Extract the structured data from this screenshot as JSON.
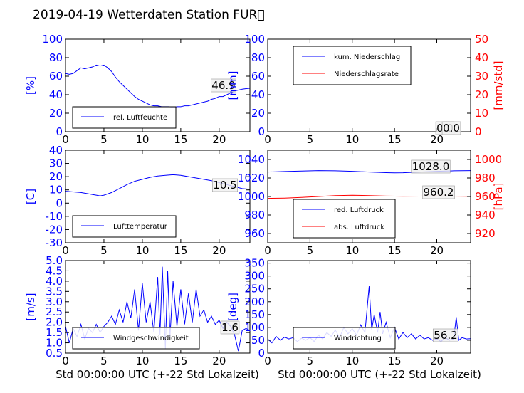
{
  "title": "2019-04-19 Wetterdaten Station FUR\u0000",
  "xlabel": "Std 00:00:00 UTC (+-22 Std Lokalzeit)",
  "colors": {
    "primary": "#0000ff",
    "secondary": "#ff0000",
    "frame": "#000000"
  },
  "chart_data": [
    {
      "id": "humidity",
      "type": "line",
      "ylabel": "[%]",
      "xlim": [
        0,
        24
      ],
      "ylim": [
        0,
        100
      ],
      "xticks": [
        0,
        5,
        10,
        15,
        20
      ],
      "yticks": [
        0,
        20,
        40,
        60,
        80,
        100
      ],
      "legend_position": "lower-left",
      "annotation": "46.9",
      "series": [
        {
          "name": "rel. Luftfeuchte",
          "color": "#0000ff",
          "x": [
            0,
            0.5,
            1,
            1.5,
            2,
            2.5,
            3,
            3.5,
            4,
            4.5,
            5,
            5.5,
            6,
            6.5,
            7,
            7.5,
            8,
            8.5,
            9,
            9.5,
            10,
            10.5,
            11,
            11.5,
            12,
            12.5,
            13,
            13.5,
            14,
            14.5,
            15,
            15.5,
            16,
            16.5,
            17,
            17.5,
            18,
            18.5,
            19,
            19.5,
            20,
            20.5,
            21,
            21.5,
            22,
            22.5,
            23,
            23.5,
            24
          ],
          "y": [
            63,
            62,
            63,
            66,
            69,
            68,
            69,
            70,
            72,
            71,
            72,
            69,
            65,
            59,
            54,
            50,
            46,
            42,
            38,
            35,
            33,
            31,
            29,
            28,
            28,
            27,
            27,
            27,
            26,
            27,
            27,
            28,
            28,
            29,
            30,
            31,
            32,
            33,
            35,
            36,
            38,
            38,
            40,
            42,
            44,
            45,
            46,
            46.5,
            46.9
          ]
        }
      ]
    },
    {
      "id": "precipitation",
      "type": "line",
      "ylabel": "[mm]",
      "ylabel_right": "[mm/std]",
      "xlim": [
        0,
        24
      ],
      "ylim": [
        0,
        100
      ],
      "ylim_right": [
        0,
        50
      ],
      "xticks": [
        0,
        5,
        10,
        15,
        20
      ],
      "yticks": [
        0,
        20,
        40,
        60,
        80,
        100
      ],
      "yticks_right": [
        0,
        10,
        20,
        30,
        40,
        50
      ],
      "legend_position": "upper-left",
      "annotation": "0.0",
      "annotation2": "0.0",
      "series": [
        {
          "name": "kum. Niederschlag",
          "color": "#0000ff",
          "x": [
            0,
            24
          ],
          "y": [
            0,
            0
          ]
        },
        {
          "name": "Niederschlagsrate",
          "color": "#ff0000",
          "axis": "right",
          "x": [
            0,
            24
          ],
          "y": [
            0,
            0
          ]
        }
      ]
    },
    {
      "id": "temperature",
      "type": "line",
      "ylabel": "[C]",
      "xlim": [
        0,
        24
      ],
      "ylim": [
        -30,
        40
      ],
      "xticks": [
        0,
        5,
        10,
        15,
        20
      ],
      "yticks": [
        -30,
        -20,
        -10,
        0,
        10,
        20,
        30,
        40
      ],
      "legend_position": "lower-left",
      "annotation": "10.5",
      "series": [
        {
          "name": "Lufttemperatur",
          "color": "#0000ff",
          "x": [
            0,
            1,
            2,
            3,
            4,
            4.5,
            5,
            6,
            7,
            8,
            9,
            10,
            11,
            12,
            13,
            14,
            15,
            16,
            17,
            18,
            19,
            20,
            21,
            22,
            23,
            24
          ],
          "y": [
            9,
            8.5,
            8,
            7,
            6,
            5.5,
            6,
            8,
            11,
            14,
            16.5,
            18,
            19.5,
            20.5,
            21,
            21.5,
            21,
            20,
            19,
            18,
            17,
            15.5,
            14,
            12.5,
            11,
            10.5
          ]
        }
      ]
    },
    {
      "id": "pressure",
      "type": "line",
      "ylabel_right": "[hPa]",
      "xlim": [
        0,
        24
      ],
      "ylim": [
        950,
        1050
      ],
      "ylim_right": [
        910,
        1010
      ],
      "xticks": [
        0,
        5,
        10,
        15,
        20
      ],
      "yticks": [
        960,
        980,
        1000,
        1020,
        1040
      ],
      "yticks_right": [
        920,
        940,
        960,
        980,
        1000
      ],
      "legend_position": "lower-left",
      "annotation": "1028.0",
      "annotation2": "960.2",
      "series": [
        {
          "name": "red. Luftdruck",
          "color": "#0000ff",
          "x": [
            0,
            2,
            4,
            6,
            8,
            10,
            12,
            14,
            15,
            16,
            18,
            20,
            22,
            24
          ],
          "y": [
            1026.5,
            1027,
            1027.5,
            1028,
            1027.8,
            1027.2,
            1026.5,
            1025.8,
            1025.5,
            1025.7,
            1026.5,
            1027.2,
            1027.8,
            1028
          ]
        },
        {
          "name": "abs. Luftdruck",
          "color": "#ff0000",
          "axis": "right",
          "x": [
            0,
            2,
            4,
            6,
            8,
            10,
            12,
            14,
            16,
            18,
            20,
            22,
            24
          ],
          "y": [
            958,
            958.3,
            959,
            960,
            961,
            961.3,
            961,
            960.5,
            960.3,
            960.4,
            960.6,
            960.4,
            960.2
          ]
        }
      ]
    },
    {
      "id": "windspeed",
      "type": "line",
      "ylabel": "[m/s]",
      "xlim": [
        0,
        24
      ],
      "ylim": [
        0.5,
        5.0
      ],
      "xticks": [
        0,
        5,
        10,
        15,
        20
      ],
      "yticks": [
        0.5,
        1.0,
        1.5,
        2.0,
        2.5,
        3.0,
        3.5,
        4.0,
        4.5,
        5.0
      ],
      "legend_position": "lower-left",
      "annotation": "1.6",
      "series": [
        {
          "name": "Windgeschwindigkeit",
          "color": "#0000ff",
          "x": [
            0,
            0.5,
            1,
            1.5,
            2,
            2.5,
            3,
            3.5,
            4,
            4.5,
            5,
            5.5,
            6,
            6.5,
            7,
            7.5,
            8,
            8.5,
            9,
            9.5,
            10,
            10.5,
            11,
            11.5,
            12,
            12.3,
            12.6,
            13,
            13.3,
            13.6,
            14,
            14.5,
            15,
            15.5,
            16,
            16.5,
            17,
            17.5,
            18,
            18.5,
            19,
            19.5,
            20,
            20.5,
            21,
            21.5,
            22,
            22.5,
            23,
            23.5,
            24
          ],
          "y": [
            1.8,
            1.0,
            1.7,
            1.3,
            1.9,
            1.2,
            1.7,
            1.5,
            1.9,
            1.5,
            1.8,
            2.0,
            2.3,
            1.9,
            2.6,
            2.0,
            3.0,
            2.2,
            3.6,
            1.6,
            3.9,
            2.0,
            3.0,
            1.5,
            4.2,
            1.4,
            4.7,
            0.7,
            4.5,
            1.3,
            4.0,
            1.8,
            3.6,
            1.9,
            3.4,
            2.0,
            3.6,
            2.3,
            2.6,
            2.0,
            2.3,
            1.9,
            2.1,
            1.7,
            2.0,
            1.8,
            1.4,
            0.6,
            1.6,
            1.7,
            1.6
          ]
        }
      ]
    },
    {
      "id": "winddirection",
      "type": "line",
      "ylabel": "[deg]",
      "xlim": [
        0,
        24
      ],
      "ylim": [
        0,
        360
      ],
      "xticks": [
        0,
        5,
        10,
        15,
        20
      ],
      "yticks": [
        0,
        50,
        100,
        150,
        200,
        250,
        300,
        350
      ],
      "legend_position": "lower-left",
      "annotation": "56.2",
      "series": [
        {
          "name": "Windrichtung",
          "color": "#0000ff",
          "x": [
            0,
            0.5,
            1,
            1.5,
            2,
            2.5,
            3,
            3.5,
            4,
            4.5,
            5,
            5.5,
            6,
            6.5,
            7,
            7.5,
            8,
            8.5,
            9,
            9.5,
            10,
            10.5,
            11,
            11.5,
            12,
            12.3,
            12.6,
            13,
            13.3,
            13.6,
            14,
            14.5,
            15,
            15.5,
            16,
            16.5,
            17,
            17.5,
            18,
            18.5,
            19,
            19.5,
            20,
            20.5,
            21,
            21.5,
            22,
            22.3,
            22.6,
            23,
            23.5,
            24
          ],
          "y": [
            55,
            40,
            65,
            50,
            62,
            55,
            60,
            45,
            58,
            50,
            60,
            45,
            70,
            55,
            80,
            65,
            90,
            60,
            100,
            75,
            95,
            70,
            110,
            80,
            260,
            90,
            150,
            80,
            160,
            75,
            120,
            60,
            100,
            55,
            80,
            60,
            75,
            55,
            70,
            55,
            60,
            50,
            55,
            45,
            60,
            50,
            55,
            140,
            50,
            60,
            55,
            56
          ]
        }
      ]
    }
  ]
}
